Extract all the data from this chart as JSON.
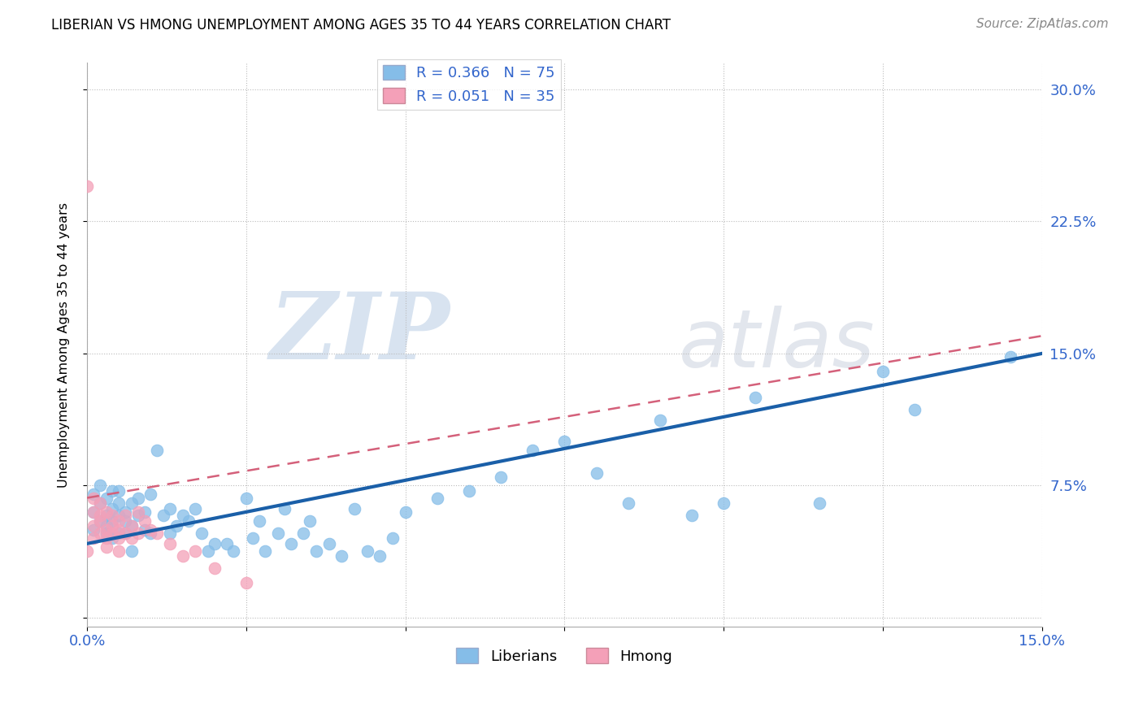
{
  "title": "LIBERIAN VS HMONG UNEMPLOYMENT AMONG AGES 35 TO 44 YEARS CORRELATION CHART",
  "source": "Source: ZipAtlas.com",
  "ylabel": "Unemployment Among Ages 35 to 44 years",
  "xlim": [
    0,
    0.15
  ],
  "ylim": [
    -0.005,
    0.315
  ],
  "xticks": [
    0.0,
    0.025,
    0.05,
    0.075,
    0.1,
    0.125,
    0.15
  ],
  "xticklabels": [
    "0.0%",
    "",
    "",
    "",
    "",
    "",
    "15.0%"
  ],
  "yticks": [
    0.0,
    0.075,
    0.15,
    0.225,
    0.3
  ],
  "yticklabels": [
    "",
    "7.5%",
    "15.0%",
    "22.5%",
    "30.0%"
  ],
  "liberian_R": 0.366,
  "liberian_N": 75,
  "hmong_R": 0.051,
  "hmong_N": 35,
  "liberian_color": "#85bde8",
  "hmong_color": "#f4a0b8",
  "trend_liberian_color": "#1a5fa8",
  "trend_hmong_color": "#d4607a",
  "watermark_zip": "ZIP",
  "watermark_atlas": "atlas",
  "background_color": "#ffffff",
  "liberian_x": [
    0.001,
    0.001,
    0.001,
    0.002,
    0.002,
    0.002,
    0.003,
    0.003,
    0.003,
    0.003,
    0.004,
    0.004,
    0.004,
    0.004,
    0.005,
    0.005,
    0.005,
    0.005,
    0.006,
    0.006,
    0.006,
    0.007,
    0.007,
    0.007,
    0.008,
    0.008,
    0.009,
    0.009,
    0.01,
    0.01,
    0.011,
    0.012,
    0.013,
    0.013,
    0.014,
    0.015,
    0.016,
    0.017,
    0.018,
    0.019,
    0.02,
    0.022,
    0.023,
    0.025,
    0.026,
    0.027,
    0.028,
    0.03,
    0.031,
    0.032,
    0.034,
    0.035,
    0.036,
    0.038,
    0.04,
    0.042,
    0.044,
    0.046,
    0.048,
    0.05,
    0.055,
    0.06,
    0.065,
    0.07,
    0.075,
    0.08,
    0.085,
    0.09,
    0.095,
    0.1,
    0.105,
    0.115,
    0.125,
    0.13,
    0.145
  ],
  "liberian_y": [
    0.06,
    0.05,
    0.07,
    0.065,
    0.055,
    0.075,
    0.058,
    0.068,
    0.048,
    0.052,
    0.062,
    0.055,
    0.072,
    0.045,
    0.058,
    0.048,
    0.065,
    0.072,
    0.055,
    0.06,
    0.048,
    0.052,
    0.065,
    0.038,
    0.058,
    0.068,
    0.05,
    0.06,
    0.07,
    0.048,
    0.095,
    0.058,
    0.062,
    0.048,
    0.052,
    0.058,
    0.055,
    0.062,
    0.048,
    0.038,
    0.042,
    0.042,
    0.038,
    0.068,
    0.045,
    0.055,
    0.038,
    0.048,
    0.062,
    0.042,
    0.048,
    0.055,
    0.038,
    0.042,
    0.035,
    0.062,
    0.038,
    0.035,
    0.045,
    0.06,
    0.068,
    0.072,
    0.08,
    0.095,
    0.1,
    0.082,
    0.065,
    0.112,
    0.058,
    0.065,
    0.125,
    0.065,
    0.14,
    0.118,
    0.148
  ],
  "hmong_x": [
    0.0,
    0.0,
    0.001,
    0.001,
    0.001,
    0.001,
    0.002,
    0.002,
    0.002,
    0.002,
    0.003,
    0.003,
    0.003,
    0.003,
    0.004,
    0.004,
    0.004,
    0.005,
    0.005,
    0.005,
    0.005,
    0.006,
    0.006,
    0.007,
    0.007,
    0.008,
    0.008,
    0.009,
    0.01,
    0.011,
    0.013,
    0.015,
    0.017,
    0.02,
    0.025
  ],
  "hmong_y": [
    0.245,
    0.038,
    0.06,
    0.052,
    0.068,
    0.045,
    0.058,
    0.048,
    0.065,
    0.055,
    0.06,
    0.05,
    0.045,
    0.04,
    0.058,
    0.052,
    0.048,
    0.055,
    0.05,
    0.045,
    0.038,
    0.058,
    0.048,
    0.052,
    0.045,
    0.06,
    0.048,
    0.055,
    0.05,
    0.048,
    0.042,
    0.035,
    0.038,
    0.028,
    0.02
  ]
}
